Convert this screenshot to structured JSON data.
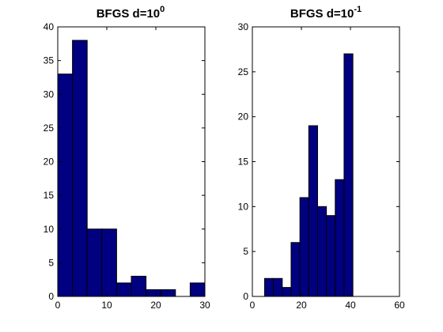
{
  "chart_data": [
    {
      "type": "bar",
      "title": {
        "base": "BFGS d=10",
        "exponent": "0"
      },
      "xlim": [
        0,
        30
      ],
      "ylim": [
        0,
        40
      ],
      "xticks": [
        "0",
        "10",
        "20",
        "30"
      ],
      "yticks": [
        "0",
        "5",
        "10",
        "15",
        "20",
        "25",
        "30",
        "35",
        "40"
      ],
      "bar_color": "#000080",
      "bins": [
        {
          "x0": 0.0,
          "x1": 3.0,
          "value": 33
        },
        {
          "x0": 3.0,
          "x1": 6.0,
          "value": 38
        },
        {
          "x0": 6.0,
          "x1": 9.0,
          "value": 10
        },
        {
          "x0": 9.0,
          "x1": 12.0,
          "value": 10
        },
        {
          "x0": 12.0,
          "x1": 15.0,
          "value": 2
        },
        {
          "x0": 15.0,
          "x1": 18.0,
          "value": 3
        },
        {
          "x0": 18.0,
          "x1": 21.0,
          "value": 1
        },
        {
          "x0": 21.0,
          "x1": 24.0,
          "value": 1
        },
        {
          "x0": 24.0,
          "x1": 27.0,
          "value": 0
        },
        {
          "x0": 27.0,
          "x1": 30.0,
          "value": 2
        }
      ]
    },
    {
      "type": "bar",
      "title": {
        "base": "BFGS d=10",
        "exponent": "-1"
      },
      "xlim": [
        0,
        60
      ],
      "ylim": [
        0,
        30
      ],
      "xticks": [
        "0",
        "20",
        "40",
        "60"
      ],
      "yticks": [
        "0",
        "5",
        "10",
        "15",
        "20",
        "25",
        "30"
      ],
      "bar_color": "#000080",
      "bins": [
        {
          "x0": 5.0,
          "x1": 8.6,
          "value": 2
        },
        {
          "x0": 8.6,
          "x1": 12.2,
          "value": 2
        },
        {
          "x0": 12.2,
          "x1": 15.8,
          "value": 1
        },
        {
          "x0": 15.8,
          "x1": 19.4,
          "value": 6
        },
        {
          "x0": 19.4,
          "x1": 23.0,
          "value": 11
        },
        {
          "x0": 23.0,
          "x1": 26.6,
          "value": 19
        },
        {
          "x0": 26.6,
          "x1": 30.2,
          "value": 10
        },
        {
          "x0": 30.2,
          "x1": 33.8,
          "value": 9
        },
        {
          "x0": 33.8,
          "x1": 37.4,
          "value": 13
        },
        {
          "x0": 37.4,
          "x1": 41.0,
          "value": 27
        }
      ]
    }
  ]
}
